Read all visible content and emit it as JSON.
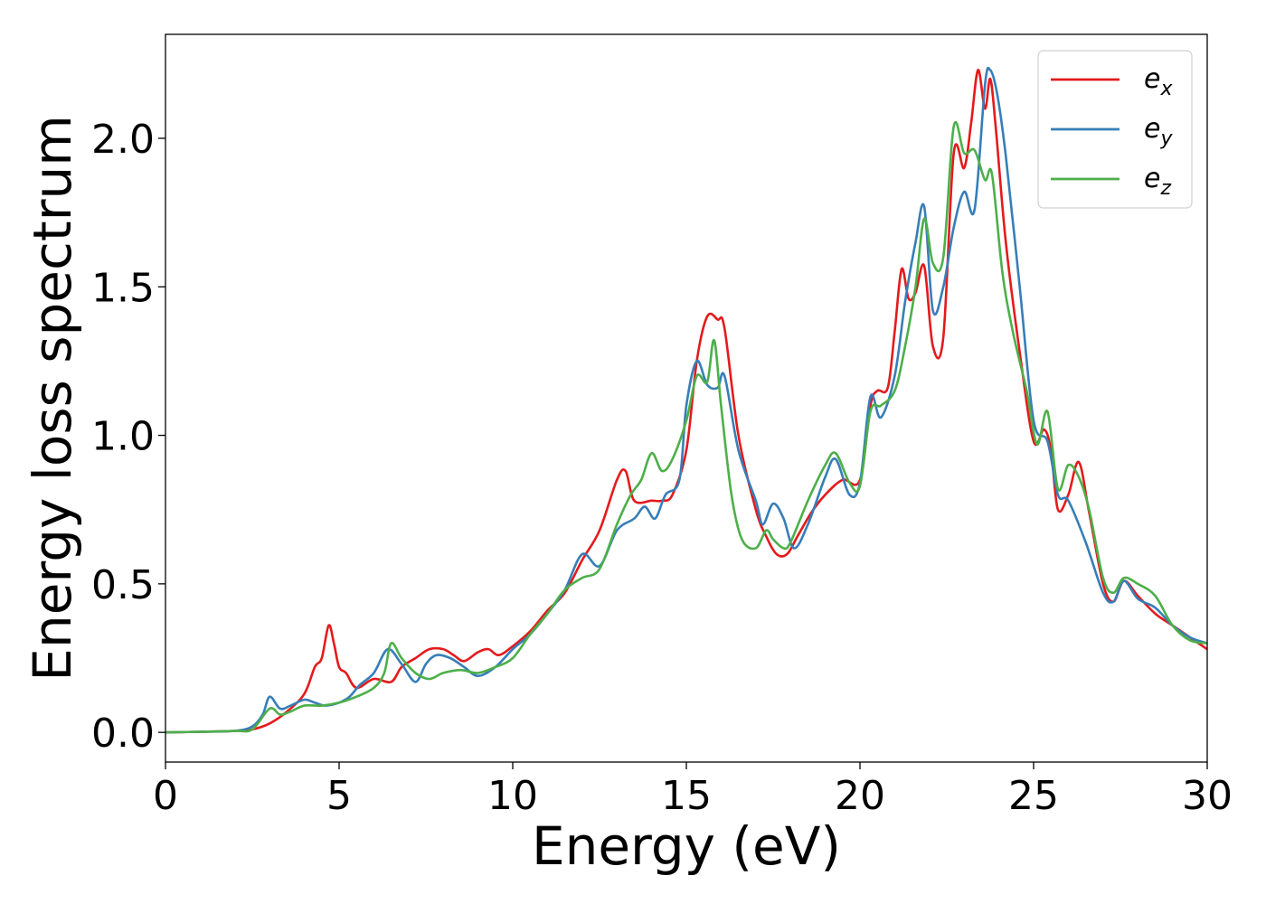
{
  "chart_data": {
    "type": "line",
    "title": "",
    "xlabel": "Energy (eV)",
    "ylabel": "Energy loss spectrum",
    "xlim": [
      0,
      30
    ],
    "ylim": [
      -0.1,
      2.35
    ],
    "xticks": [
      0,
      5,
      10,
      15,
      20,
      25,
      30
    ],
    "xtick_labels": [
      "0",
      "5",
      "10",
      "15",
      "20",
      "25",
      "30"
    ],
    "yticks": [
      0.0,
      0.5,
      1.0,
      1.5,
      2.0
    ],
    "ytick_labels": [
      "0.0",
      "0.5",
      "1.0",
      "1.5",
      "2.0"
    ],
    "grid": false,
    "legend_position": "top-right",
    "series": [
      {
        "name": "e_x",
        "label_base": "e",
        "label_sub": "x",
        "color": "#e41a1c",
        "x": [
          0,
          1,
          2,
          2.5,
          3,
          3.5,
          4,
          4.3,
          4.5,
          4.7,
          4.85,
          5,
          5.2,
          5.5,
          6,
          6.5,
          6.8,
          7.2,
          7.6,
          8,
          8.3,
          8.6,
          9,
          9.3,
          9.6,
          10,
          10.5,
          11,
          11.5,
          12,
          12.5,
          13,
          13.25,
          13.5,
          14,
          14.3,
          14.6,
          15,
          15.3,
          15.6,
          15.9,
          16.1,
          16.5,
          17,
          17.3,
          17.6,
          17.9,
          18.2,
          18.6,
          19,
          19.5,
          20,
          20.3,
          20.5,
          20.8,
          21,
          21.2,
          21.4,
          21.6,
          21.85,
          22.1,
          22.4,
          22.7,
          23,
          23.2,
          23.4,
          23.6,
          23.75,
          23.9,
          24.2,
          24.6,
          25,
          25.3,
          25.5,
          25.7,
          26,
          26.3,
          26.6,
          27,
          27.3,
          27.6,
          28,
          28.5,
          29,
          29.5,
          30
        ],
        "y": [
          0,
          0.002,
          0.005,
          0.01,
          0.03,
          0.07,
          0.13,
          0.22,
          0.25,
          0.36,
          0.3,
          0.22,
          0.2,
          0.15,
          0.18,
          0.17,
          0.22,
          0.25,
          0.28,
          0.28,
          0.26,
          0.24,
          0.27,
          0.28,
          0.26,
          0.29,
          0.34,
          0.41,
          0.47,
          0.58,
          0.68,
          0.85,
          0.88,
          0.78,
          0.78,
          0.78,
          0.8,
          0.95,
          1.25,
          1.4,
          1.39,
          1.36,
          1.0,
          0.75,
          0.66,
          0.6,
          0.6,
          0.66,
          0.74,
          0.8,
          0.85,
          0.85,
          1.1,
          1.15,
          1.16,
          1.35,
          1.56,
          1.46,
          1.48,
          1.57,
          1.3,
          1.33,
          1.95,
          1.9,
          2.05,
          2.23,
          2.1,
          2.2,
          2.05,
          1.65,
          1.28,
          0.98,
          1.02,
          0.95,
          0.75,
          0.8,
          0.91,
          0.74,
          0.5,
          0.44,
          0.51,
          0.46,
          0.4,
          0.36,
          0.32,
          0.28
        ]
      },
      {
        "name": "e_y",
        "label_base": "e",
        "label_sub": "y",
        "color": "#377eb8",
        "x": [
          0,
          1,
          2,
          2.5,
          2.8,
          3,
          3.3,
          3.6,
          4,
          4.3,
          4.6,
          5,
          5.3,
          5.6,
          6,
          6.4,
          6.8,
          7.2,
          7.5,
          7.8,
          8.2,
          8.6,
          9,
          9.5,
          10,
          10.5,
          11,
          11.5,
          12,
          12.5,
          13,
          13.5,
          13.8,
          14.1,
          14.4,
          14.8,
          15,
          15.3,
          15.6,
          15.9,
          16.1,
          16.5,
          17,
          17.2,
          17.5,
          17.8,
          18.1,
          18.5,
          19,
          19.3,
          19.7,
          20,
          20.3,
          20.6,
          21,
          21.3,
          21.6,
          21.85,
          22.1,
          22.4,
          22.7,
          23,
          23.3,
          23.6,
          23.75,
          23.95,
          24.2,
          24.6,
          25,
          25.4,
          25.7,
          26,
          26.5,
          27,
          27.3,
          27.6,
          28,
          28.5,
          29,
          29.5,
          30
        ],
        "y": [
          0,
          0.002,
          0.005,
          0.02,
          0.06,
          0.12,
          0.08,
          0.09,
          0.11,
          0.1,
          0.09,
          0.1,
          0.12,
          0.16,
          0.2,
          0.28,
          0.23,
          0.17,
          0.23,
          0.26,
          0.25,
          0.22,
          0.19,
          0.22,
          0.28,
          0.33,
          0.4,
          0.48,
          0.6,
          0.56,
          0.68,
          0.72,
          0.76,
          0.72,
          0.8,
          0.85,
          1.1,
          1.25,
          1.17,
          1.16,
          1.2,
          0.95,
          0.78,
          0.7,
          0.77,
          0.72,
          0.62,
          0.7,
          0.86,
          0.92,
          0.8,
          0.84,
          1.13,
          1.06,
          1.2,
          1.45,
          1.65,
          1.77,
          1.42,
          1.5,
          1.7,
          1.82,
          1.76,
          2.18,
          2.23,
          2.15,
          1.94,
          1.5,
          1.05,
          0.98,
          0.8,
          0.78,
          0.64,
          0.47,
          0.44,
          0.51,
          0.45,
          0.42,
          0.36,
          0.32,
          0.3
        ]
      },
      {
        "name": "e_z",
        "label_base": "e",
        "label_sub": "z",
        "color": "#4daf4a",
        "x": [
          0,
          1,
          2,
          2.5,
          3,
          3.3,
          3.6,
          4,
          4.5,
          5,
          5.5,
          6,
          6.3,
          6.5,
          6.8,
          7.2,
          7.6,
          8,
          8.5,
          9,
          9.5,
          10,
          10.5,
          11,
          11.5,
          12,
          12.5,
          13,
          13.4,
          13.7,
          14,
          14.3,
          14.6,
          15,
          15.3,
          15.6,
          15.8,
          16,
          16.3,
          16.6,
          17,
          17.3,
          17.5,
          17.8,
          18,
          18.5,
          19,
          19.3,
          19.7,
          20,
          20.3,
          20.6,
          21,
          21.3,
          21.6,
          21.85,
          22.1,
          22.4,
          22.7,
          23,
          23.3,
          23.6,
          23.8,
          24.1,
          24.4,
          24.8,
          25.1,
          25.4,
          25.7,
          26,
          26.3,
          26.6,
          27,
          27.3,
          27.6,
          28,
          28.5,
          29,
          29.5,
          30
        ],
        "y": [
          0,
          0.002,
          0.005,
          0.01,
          0.08,
          0.06,
          0.07,
          0.09,
          0.09,
          0.1,
          0.12,
          0.15,
          0.2,
          0.3,
          0.25,
          0.2,
          0.18,
          0.2,
          0.21,
          0.2,
          0.22,
          0.25,
          0.33,
          0.4,
          0.48,
          0.52,
          0.55,
          0.7,
          0.8,
          0.85,
          0.94,
          0.88,
          0.92,
          1.05,
          1.2,
          1.18,
          1.32,
          1.1,
          0.8,
          0.65,
          0.62,
          0.68,
          0.65,
          0.62,
          0.64,
          0.78,
          0.9,
          0.94,
          0.84,
          0.83,
          1.08,
          1.1,
          1.15,
          1.3,
          1.5,
          1.73,
          1.58,
          1.6,
          2.04,
          1.95,
          1.96,
          1.86,
          1.88,
          1.55,
          1.35,
          1.15,
          0.97,
          1.08,
          0.82,
          0.9,
          0.86,
          0.75,
          0.52,
          0.47,
          0.52,
          0.5,
          0.46,
          0.36,
          0.31,
          0.3
        ]
      }
    ]
  }
}
